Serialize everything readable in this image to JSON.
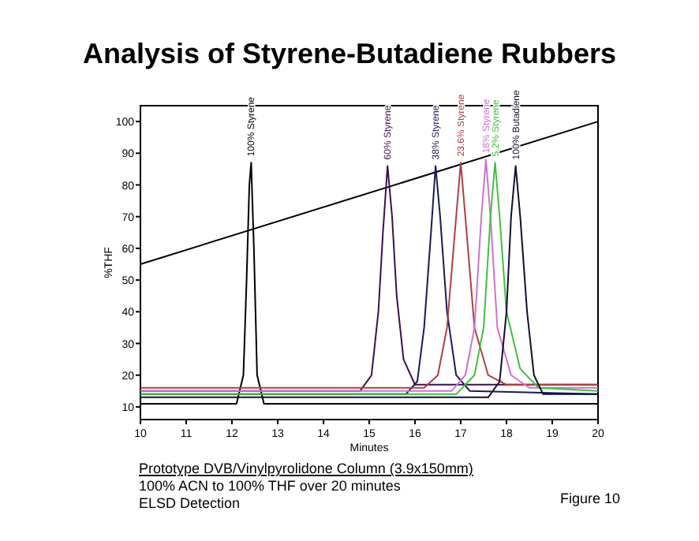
{
  "chart_data": {
    "type": "line",
    "title": "Analysis of Styrene-Butadiene Rubbers",
    "xlabel": "Minutes",
    "ylabel": "%THF",
    "xlim": [
      10,
      20
    ],
    "ylim": [
      6,
      105
    ],
    "xticks": [
      10,
      11,
      12,
      13,
      14,
      15,
      16,
      17,
      18,
      19,
      20
    ],
    "yticks": [
      10,
      20,
      30,
      40,
      50,
      60,
      70,
      80,
      90,
      100
    ],
    "grid": false,
    "series": [
      {
        "color": "#000000",
        "x": [
          10,
          20
        ],
        "values": [
          55,
          100
        ]
      },
      {
        "name": "100% Styrene",
        "color": "#000000",
        "x": [
          10,
          12.1,
          12.25,
          12.32,
          12.38,
          12.42,
          12.48,
          12.55,
          12.7,
          20
        ],
        "values": [
          11,
          11,
          20,
          50,
          80,
          87,
          60,
          20,
          11,
          11
        ]
      },
      {
        "name": "60% Styrene",
        "color": "#3a1050",
        "x": [
          10,
          14.8,
          15.05,
          15.2,
          15.3,
          15.4,
          15.5,
          15.6,
          15.75,
          16,
          20
        ],
        "values": [
          15,
          15,
          20,
          40,
          65,
          86,
          70,
          45,
          25,
          17,
          17
        ]
      },
      {
        "name": "38% Styrene",
        "color": "#1a1a5a",
        "x": [
          10,
          15.8,
          16.05,
          16.2,
          16.35,
          16.45,
          16.55,
          16.7,
          16.9,
          17.2,
          20
        ],
        "values": [
          14,
          14,
          18,
          35,
          65,
          86,
          70,
          40,
          20,
          15,
          14
        ]
      },
      {
        "name": "23.6% Styrene",
        "color": "#b04040",
        "x": [
          10,
          16.2,
          16.5,
          16.7,
          16.9,
          17,
          17.1,
          17.3,
          17.6,
          18,
          20
        ],
        "values": [
          16,
          16,
          20,
          35,
          70,
          87,
          70,
          35,
          20,
          17,
          17
        ]
      },
      {
        "name": "18% Styrene",
        "color": "#d070d0",
        "x": [
          10,
          16.8,
          17.1,
          17.3,
          17.45,
          17.55,
          17.65,
          17.8,
          18.1,
          18.5,
          20
        ],
        "values": [
          15,
          15,
          20,
          35,
          70,
          88,
          70,
          35,
          20,
          16,
          16
        ]
      },
      {
        "name": "5.2% Styrene",
        "color": "#40c040",
        "x": [
          10,
          16.9,
          17.3,
          17.5,
          17.65,
          17.75,
          17.85,
          18,
          18.3,
          18.7,
          20
        ],
        "values": [
          14,
          14,
          20,
          35,
          70,
          87,
          70,
          40,
          22,
          16,
          15
        ]
      },
      {
        "name": "100% Butadiene",
        "color": "#101030",
        "x": [
          10,
          17.6,
          17.85,
          18,
          18.1,
          18.2,
          18.3,
          18.45,
          18.6,
          18.8,
          20
        ],
        "values": [
          13,
          13,
          18,
          40,
          70,
          86,
          70,
          40,
          20,
          14,
          14
        ]
      }
    ],
    "annotations": [
      "Prototype DVB/Vinylpyrolidone Column (3.9x150mm)",
      "100% ACN to 100% THF over 20 minutes",
      "ELSD Detection",
      "Figure 10"
    ]
  }
}
